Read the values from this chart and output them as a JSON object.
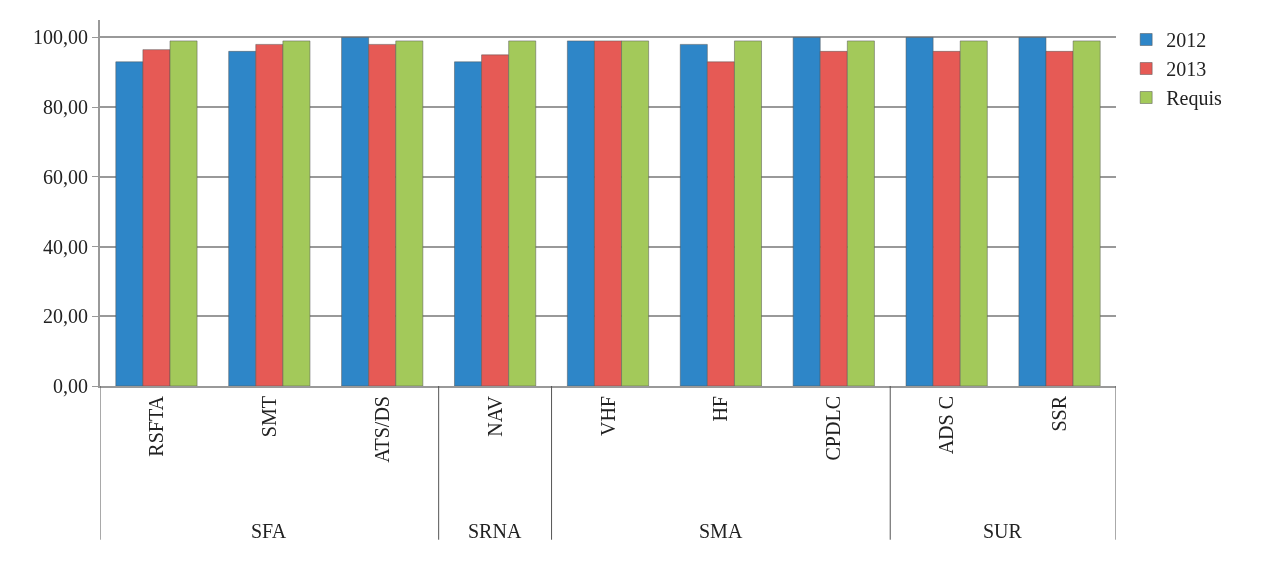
{
  "chart_data": {
    "type": "bar",
    "categories": [
      "RSFTA",
      "SMT",
      "ATS/DS",
      "NAV",
      "VHF",
      "HF",
      "CPDLC",
      "ADS C",
      "SSR"
    ],
    "series": [
      {
        "name": "2012",
        "color": "#2e86c8",
        "values": [
          93,
          96,
          100,
          93,
          99,
          98,
          100,
          100,
          100
        ]
      },
      {
        "name": "2013",
        "color": "#e65a55",
        "values": [
          96.5,
          98,
          98,
          95,
          99,
          93,
          96,
          96,
          96
        ]
      },
      {
        "name": "Requis",
        "color": "#a3c95a",
        "values": [
          99,
          99,
          99,
          99,
          99,
          99,
          99,
          99,
          99
        ]
      }
    ],
    "ylim": [
      0,
      105
    ],
    "yticks": [
      {
        "value": 0,
        "label": "0,00"
      },
      {
        "value": 20,
        "label": "20,00"
      },
      {
        "value": 40,
        "label": "40,00"
      },
      {
        "value": 60,
        "label": "60,00"
      },
      {
        "value": 80,
        "label": "80,00"
      },
      {
        "value": 100,
        "label": "100,00"
      }
    ],
    "annotations": [
      "SFA",
      "SRNA",
      "SMA",
      "SUR"
    ],
    "grid": "y",
    "legend": "top right"
  }
}
